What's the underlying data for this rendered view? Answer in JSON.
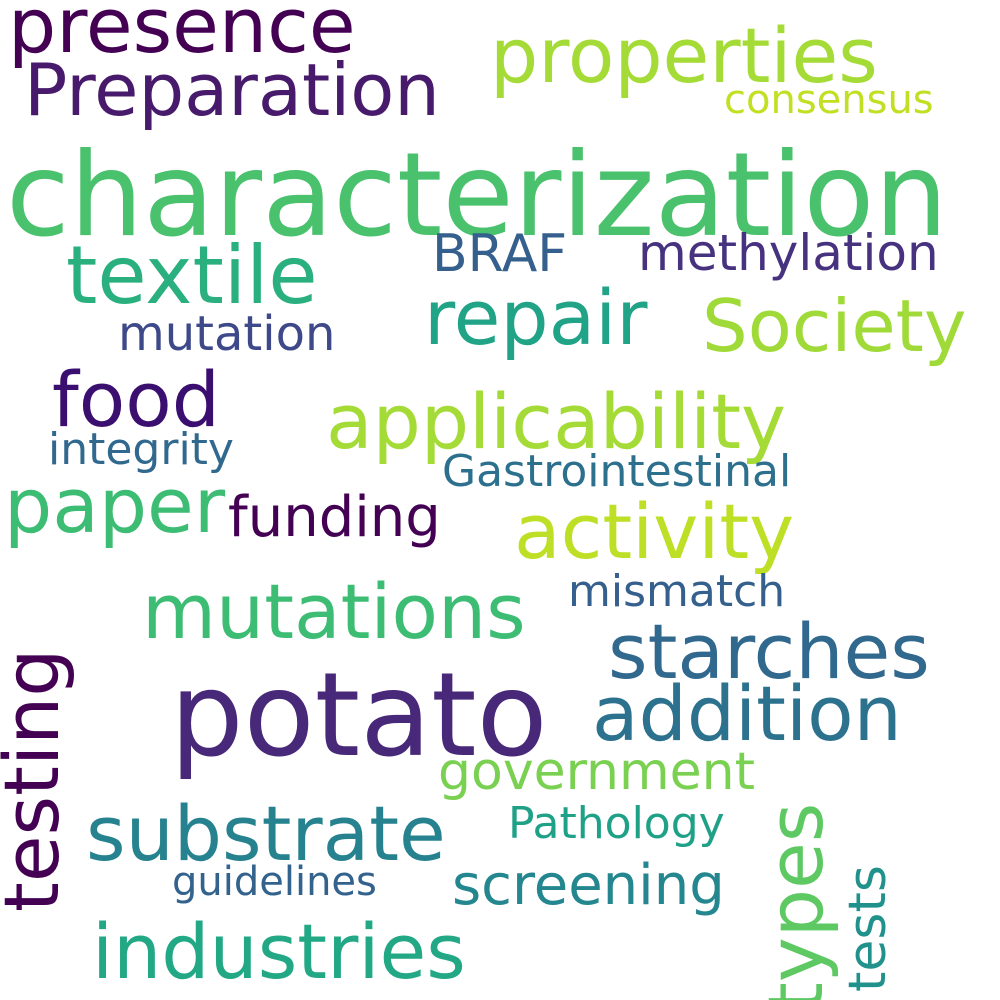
{
  "words": [
    {
      "text": "presence",
      "color": "#440154"
    },
    {
      "text": "Preparation",
      "color": "#481a6c"
    },
    {
      "text": "properties",
      "color": "#a5db36"
    },
    {
      "text": "consensus",
      "color": "#c2df23"
    },
    {
      "text": "characterization",
      "color": "#4ac16d"
    },
    {
      "text": "textile",
      "color": "#2ab07f"
    },
    {
      "text": "BRAF",
      "color": "#355f8d"
    },
    {
      "text": "methylation",
      "color": "#46327e"
    },
    {
      "text": "repair",
      "color": "#20a386"
    },
    {
      "text": "Society",
      "color": "#a0da39"
    },
    {
      "text": "mutation",
      "color": "#3e4989"
    },
    {
      "text": "food",
      "color": "#3b0f70"
    },
    {
      "text": "applicability",
      "color": "#a5db36"
    },
    {
      "text": "integrity",
      "color": "#31688e"
    },
    {
      "text": "Gastrointestinal",
      "color": "#2d708e"
    },
    {
      "text": "paper",
      "color": "#3dbc74"
    },
    {
      "text": "funding",
      "color": "#440154"
    },
    {
      "text": "activity",
      "color": "#bddf26"
    },
    {
      "text": "mismatch",
      "color": "#355f8d"
    },
    {
      "text": "mutations",
      "color": "#3dbc74"
    },
    {
      "text": "starches",
      "color": "#31688e"
    },
    {
      "text": "potato",
      "color": "#482878"
    },
    {
      "text": "addition",
      "color": "#2c728e"
    },
    {
      "text": "testing",
      "color": "#440154"
    },
    {
      "text": "government",
      "color": "#7ad151"
    },
    {
      "text": "types",
      "color": "#5ec962"
    },
    {
      "text": "tests",
      "color": "#21918c"
    },
    {
      "text": "substrate",
      "color": "#26828e"
    },
    {
      "text": "Pathology",
      "color": "#1fa187"
    },
    {
      "text": "guidelines",
      "color": "#33638d"
    },
    {
      "text": "screening",
      "color": "#24868e"
    },
    {
      "text": "industries",
      "color": "#22a884"
    }
  ]
}
